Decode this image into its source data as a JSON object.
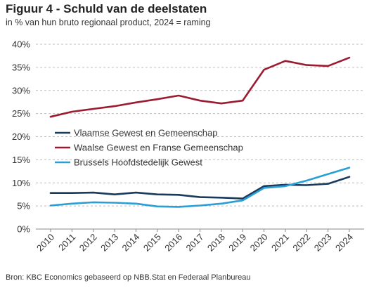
{
  "title": "Figuur 4 - Schuld van de deelstaten",
  "subtitle": "in % van hun bruto regionaal product, 2024 = raming",
  "source": "Bron: KBC Economics gebaseerd op NBB.Stat en Federaal Planbureau",
  "chart_data": {
    "type": "line",
    "x": [
      "2010",
      "2011",
      "2012",
      "2013",
      "2014",
      "2015",
      "2016",
      "2017",
      "2018",
      "2019",
      "2020",
      "2021",
      "2022",
      "2023",
      "2024"
    ],
    "y_ticks": [
      "0%",
      "5%",
      "10%",
      "15%",
      "20%",
      "25%",
      "30%",
      "35%",
      "40%"
    ],
    "ylim": [
      0,
      40
    ],
    "grid": "horizontal dashed",
    "legend_position": "center-left",
    "series": [
      {
        "name": "Vlaamse Gewest en Gemeenschap",
        "color": "#1a3a5c",
        "values": [
          7.8,
          7.8,
          7.9,
          7.5,
          7.9,
          7.5,
          7.4,
          6.9,
          6.8,
          6.6,
          9.3,
          9.6,
          9.5,
          9.8,
          11.3
        ]
      },
      {
        "name": "Waalse Gewest en Franse Gemeenschap",
        "color": "#9b1b30",
        "values": [
          24.3,
          25.4,
          26.0,
          26.6,
          27.4,
          28.1,
          28.9,
          27.8,
          27.2,
          27.8,
          34.5,
          36.4,
          35.5,
          35.3,
          37.1
        ]
      },
      {
        "name": "Brussels Hoofdstedelijk Gewest",
        "color": "#2a9fd6",
        "values": [
          5.1,
          5.5,
          5.8,
          5.7,
          5.5,
          4.9,
          4.8,
          5.1,
          5.5,
          6.2,
          8.9,
          9.3,
          10.5,
          11.9,
          13.3
        ]
      }
    ]
  }
}
